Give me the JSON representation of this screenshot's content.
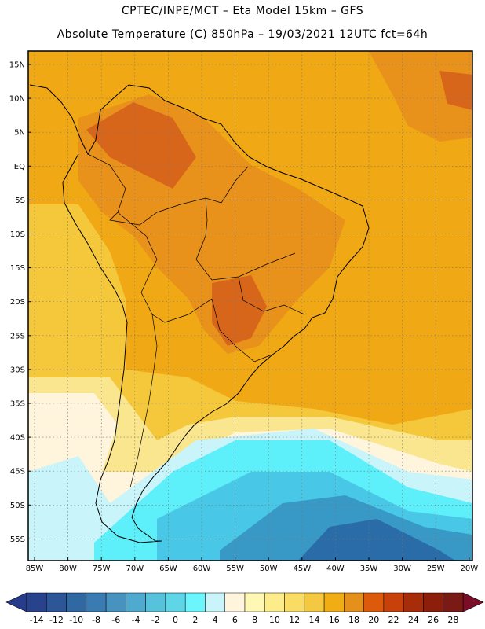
{
  "header": {
    "line1": "CPTEC/INPE/MCT –  Eta Model 15km – GFS",
    "line2": "Absolute Temperature (C) 850hPa – 19/03/2021 12UTC fct=64h"
  },
  "map": {
    "lat_labels": [
      "15N",
      "10N",
      "5N",
      "EQ",
      "5S",
      "10S",
      "15S",
      "20S",
      "25S",
      "30S",
      "35S",
      "40S",
      "45S",
      "50S",
      "55S"
    ],
    "lon_labels": [
      "85W",
      "80W",
      "75W",
      "70W",
      "65W",
      "60W",
      "55W",
      "50W",
      "45W",
      "40W",
      "35W",
      "30W",
      "25W",
      "20W"
    ],
    "field_colors": {
      "very_warm": "#d8661a",
      "warm": "#e8921c",
      "mild_warm": "#f0a814",
      "moderate": "#f5c83c",
      "cool": "#fbe690",
      "cooler": "#fdf6c8",
      "pale": "#fff4dc",
      "light_cyan": "#c8f4fa",
      "cyan": "#5ef0fa",
      "sky": "#48c8e6",
      "blue": "#3898c6",
      "deep_blue": "#2a6ca8"
    }
  },
  "colorbar": {
    "labels": [
      "-14",
      "-12",
      "-10",
      "-8",
      "-6",
      "-4",
      "-2",
      "0",
      "2",
      "4",
      "6",
      "8",
      "10",
      "12",
      "14",
      "16",
      "18",
      "20",
      "22",
      "24",
      "26",
      "28"
    ],
    "colors": [
      "#28428c",
      "#2c5696",
      "#3068a2",
      "#3a7cb2",
      "#4892c0",
      "#4eaace",
      "#56c2dc",
      "#5ed6e8",
      "#6af6fc",
      "#c8f4fa",
      "#fff4dc",
      "#fef8b4",
      "#fcec8a",
      "#f8dc64",
      "#f4c840",
      "#f0ae14",
      "#e6901c",
      "#dc5a0a",
      "#c8400a",
      "#a82c0a",
      "#8c1e0a",
      "#7a1a14"
    ],
    "low_color": "#283c8c",
    "high_color": "#7a0e28"
  }
}
